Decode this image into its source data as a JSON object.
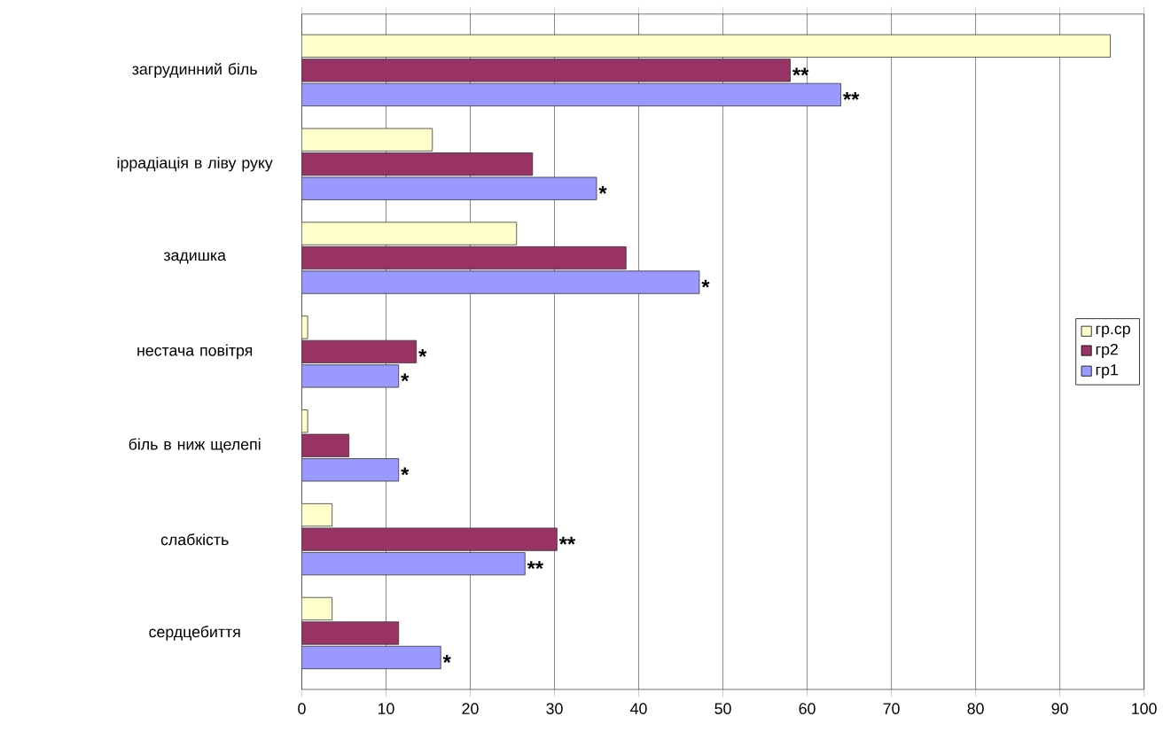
{
  "chart_data": {
    "type": "bar",
    "orientation": "horizontal",
    "categories": [
      "загрудинний біль",
      "іррадіація в ліву руку",
      "задишка",
      "нестача повітря",
      "біль в ниж щелепі",
      "слабкість",
      "сердцебиття"
    ],
    "series": [
      {
        "name": "гр.ср",
        "color": "#ffffcc",
        "values": [
          96,
          15.5,
          25.5,
          0.7,
          0.7,
          3.6,
          3.6
        ]
      },
      {
        "name": "гр2",
        "color": "#993366",
        "values": [
          58,
          27.4,
          38.5,
          13.6,
          5.6,
          30.3,
          11.5
        ],
        "value_labels": [
          "**",
          null,
          null,
          "*",
          null,
          "**",
          null
        ]
      },
      {
        "name": "гр1",
        "color": "#9999ff",
        "values": [
          64,
          35,
          47.2,
          11.5,
          11.5,
          26.5,
          16.5
        ],
        "value_labels": [
          "**",
          "*",
          "*",
          "*",
          "*",
          "**",
          "*"
        ]
      }
    ],
    "xlim": [
      0,
      100
    ],
    "xticks": [
      0,
      10,
      20,
      30,
      40,
      50,
      60,
      70,
      80,
      90,
      100
    ],
    "grid": "x",
    "legend": "right"
  }
}
